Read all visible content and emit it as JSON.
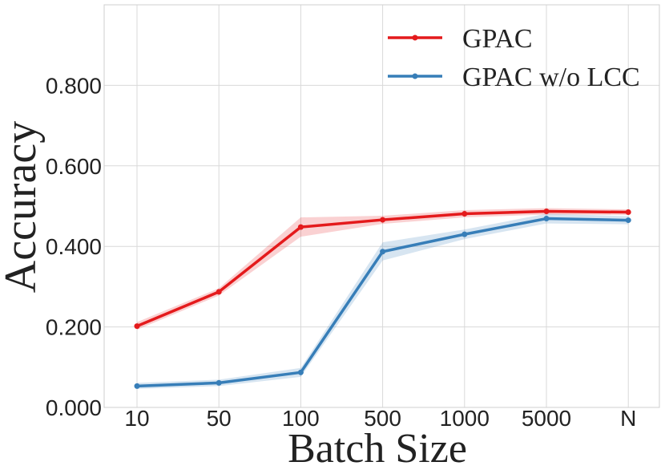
{
  "chart_data": {
    "type": "line",
    "title": "",
    "xlabel": "Batch Size",
    "ylabel": "Accuracy",
    "categories": [
      "10",
      "50",
      "100",
      "500",
      "1000",
      "5000",
      "N"
    ],
    "ylim": [
      0,
      1.0
    ],
    "yticks": [
      0.0,
      0.2,
      0.4,
      0.6,
      0.8
    ],
    "ytick_labels": [
      "0.000",
      "0.200",
      "0.400",
      "0.600",
      "0.800"
    ],
    "grid": true,
    "legend_position": "top-right",
    "series": [
      {
        "name": "GPAC",
        "color": "#e41a1c",
        "values": [
          0.202,
          0.287,
          0.448,
          0.466,
          0.481,
          0.487,
          0.485
        ],
        "lower": [
          0.193,
          0.278,
          0.424,
          0.456,
          0.472,
          0.479,
          0.478
        ],
        "upper": [
          0.212,
          0.296,
          0.472,
          0.476,
          0.49,
          0.495,
          0.492
        ]
      },
      {
        "name": "GPAC w/o LCC",
        "color": "#377eb8",
        "values": [
          0.053,
          0.061,
          0.087,
          0.387,
          0.43,
          0.469,
          0.465
        ],
        "lower": [
          0.046,
          0.053,
          0.076,
          0.365,
          0.418,
          0.457,
          0.455
        ],
        "upper": [
          0.061,
          0.069,
          0.098,
          0.41,
          0.442,
          0.481,
          0.475
        ]
      }
    ]
  }
}
